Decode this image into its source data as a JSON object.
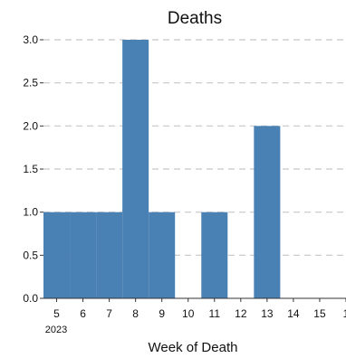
{
  "chart_data": {
    "type": "bar",
    "title": "Deaths",
    "xlabel": "Week of Death",
    "ylabel": "",
    "x_year_label": "2023",
    "x_tick_labels": [
      "5",
      "6",
      "7",
      "8",
      "9",
      "10",
      "11",
      "12",
      "13",
      "14",
      "15",
      "1"
    ],
    "y_tick_labels": [
      "0.0",
      "0.5",
      "1.0",
      "1.5",
      "2.0",
      "2.5",
      "3.0"
    ],
    "ylim": [
      0,
      3
    ],
    "xlim": [
      4.5,
      16
    ],
    "grid": "horizontal dashed",
    "bar_color": "#4a81b4",
    "bars": [
      {
        "start": 4.5,
        "end": 5.5,
        "value": 1
      },
      {
        "start": 5.5,
        "end": 6.5,
        "value": 1
      },
      {
        "start": 6.5,
        "end": 7.5,
        "value": 1
      },
      {
        "start": 7.5,
        "end": 8.5,
        "value": 3
      },
      {
        "start": 8.5,
        "end": 9.5,
        "value": 1
      },
      {
        "start": 9.5,
        "end": 10.5,
        "value": 0
      },
      {
        "start": 10.5,
        "end": 11.5,
        "value": 1
      },
      {
        "start": 11.5,
        "end": 12.5,
        "value": 0
      },
      {
        "start": 12.5,
        "end": 13.5,
        "value": 2
      },
      {
        "start": 13.5,
        "end": 14.5,
        "value": 0
      },
      {
        "start": 14.5,
        "end": 15.5,
        "value": 0
      }
    ]
  }
}
